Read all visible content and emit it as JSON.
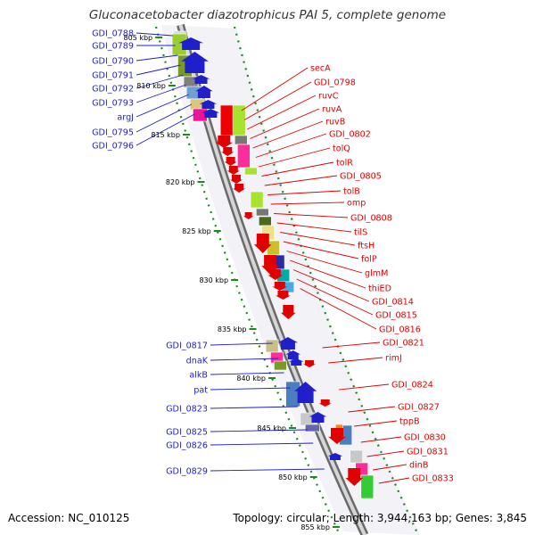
{
  "title": "Gluconacetobacter diazotrophicus PAI 5, complete genome",
  "footer": {
    "accession": "Accession: NC_010125",
    "summary": "Topology: circular; Length: 3,944,163 bp; Genes: 3,845"
  },
  "colors": {
    "plus_strand": "#1f1fcc",
    "minus_strand": "#e00000",
    "backbone": "#8c8c8c",
    "tick": "#1a8a1a"
  },
  "scale_labels": [
    "805 kbp",
    "810 kbp",
    "815 kbp",
    "820 kbp",
    "825 kbp",
    "830 kbp",
    "835 kbp",
    "840 kbp",
    "845 kbp",
    "850 kbp",
    "855 kbp"
  ],
  "left_labels": [
    "GDI_0788",
    "GDI_0789",
    "GDI_0790",
    "GDI_0791",
    "GDI_0792",
    "GDI_0793",
    "argJ",
    "GDI_0795",
    "GDI_0796",
    "GDI_0817",
    "dnaK",
    "alkB",
    "pat",
    "GDI_0823",
    "GDI_0825",
    "GDI_0826",
    "GDI_0829"
  ],
  "right_labels": [
    "secA",
    "GDI_0798",
    "ruvC",
    "ruvA",
    "ruvB",
    "GDI_0802",
    "tolQ",
    "tolR",
    "GDI_0805",
    "tolB",
    "omp",
    "GDI_0808",
    "tilS",
    "ftsH",
    "folP",
    "glmM",
    "thiED",
    "GDI_0814",
    "GDI_0815",
    "GDI_0816",
    "GDI_0821",
    "rimJ",
    "GDI_0824",
    "GDI_0827",
    "tppB",
    "GDI_0830",
    "GDI_0831",
    "dinB",
    "GDI_0833"
  ]
}
